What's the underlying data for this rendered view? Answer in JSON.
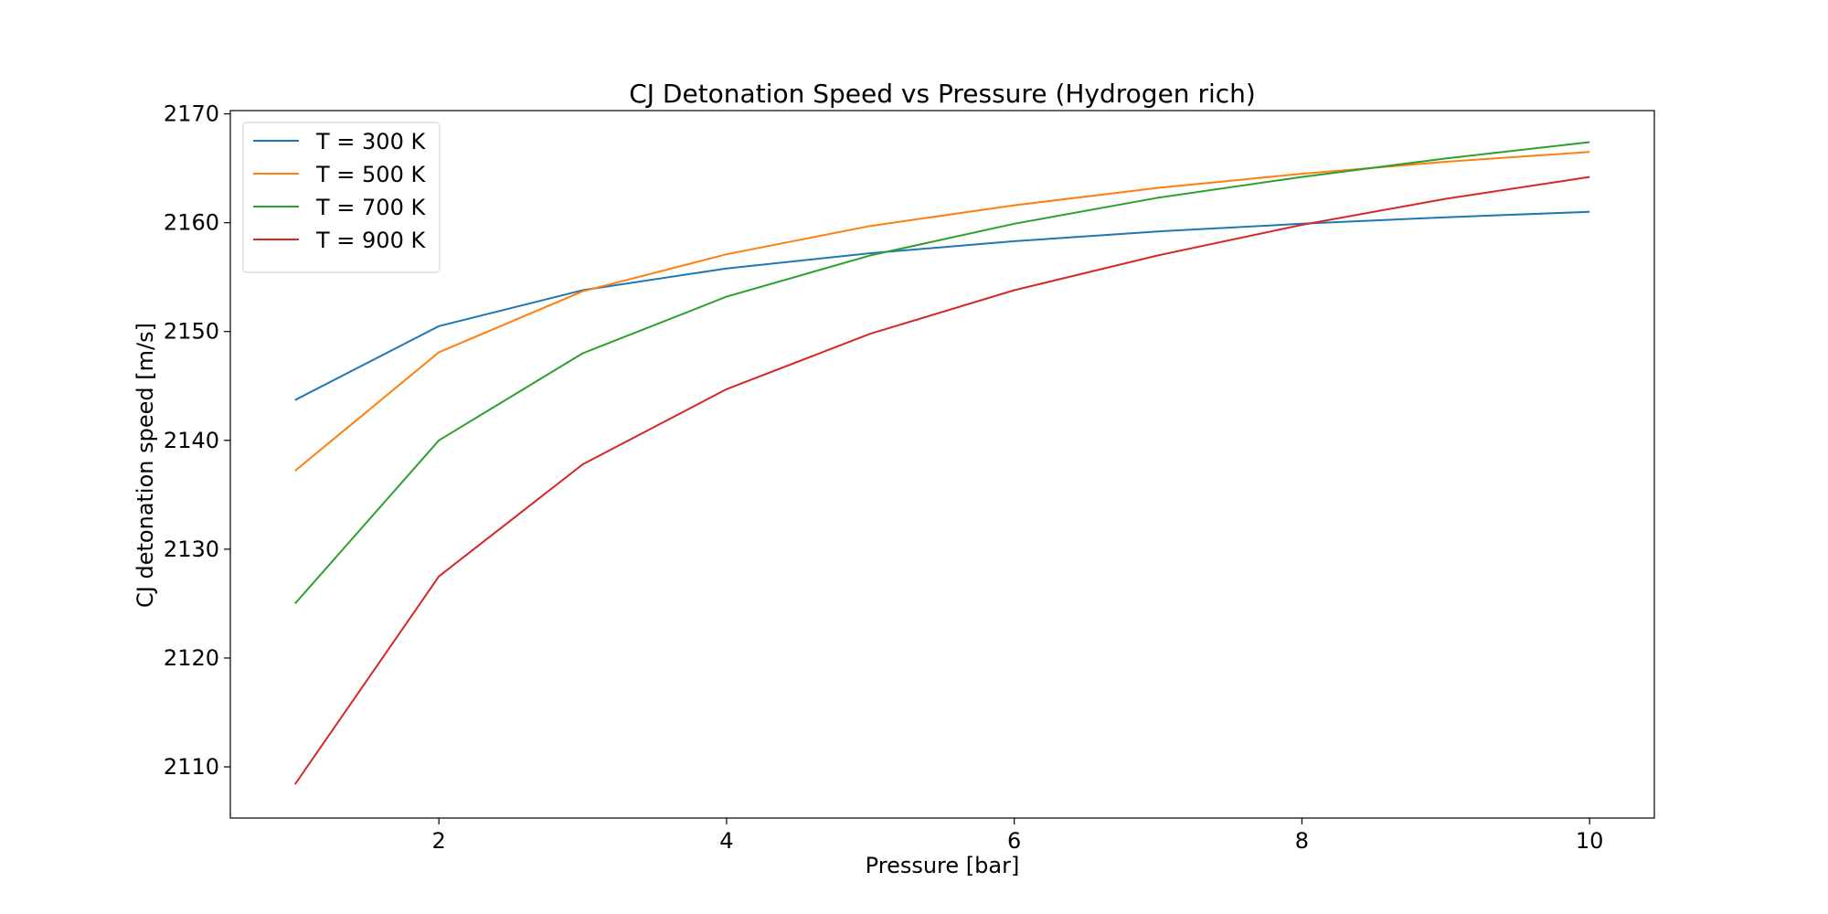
{
  "chart_data": {
    "type": "line",
    "title": "CJ Detonation Speed vs Pressure (Hydrogen rich)",
    "xlabel": "Pressure [bar]",
    "ylabel": "CJ detonation speed [m/s]",
    "xlim": [
      0.55,
      10.45
    ],
    "ylim": [
      2105.3,
      2170.3
    ],
    "xticks": [
      2,
      4,
      6,
      8,
      10
    ],
    "yticks": [
      2110,
      2120,
      2130,
      2140,
      2150,
      2160,
      2170
    ],
    "grid": false,
    "legend_position": "top-left",
    "x": [
      1,
      2,
      3,
      4,
      5,
      6,
      7,
      8,
      9,
      10
    ],
    "series": [
      {
        "name": "T = 300 K",
        "color": "#1f77b4",
        "values": [
          2143.7,
          2150.5,
          2153.8,
          2155.8,
          2157.2,
          2158.3,
          2159.2,
          2159.9,
          2160.5,
          2161.0
        ]
      },
      {
        "name": "T = 500 K",
        "color": "#ff7f0e",
        "values": [
          2137.2,
          2148.1,
          2153.7,
          2157.1,
          2159.7,
          2161.6,
          2163.2,
          2164.5,
          2165.6,
          2166.5
        ]
      },
      {
        "name": "T = 700 K",
        "color": "#2ca02c",
        "values": [
          2125.0,
          2140.0,
          2148.0,
          2153.2,
          2157.0,
          2159.9,
          2162.3,
          2164.2,
          2165.9,
          2167.4
        ]
      },
      {
        "name": "T = 900 K",
        "color": "#d62728",
        "values": [
          2108.4,
          2127.5,
          2137.8,
          2144.7,
          2149.8,
          2153.8,
          2157.0,
          2159.8,
          2162.2,
          2164.2
        ]
      }
    ]
  }
}
